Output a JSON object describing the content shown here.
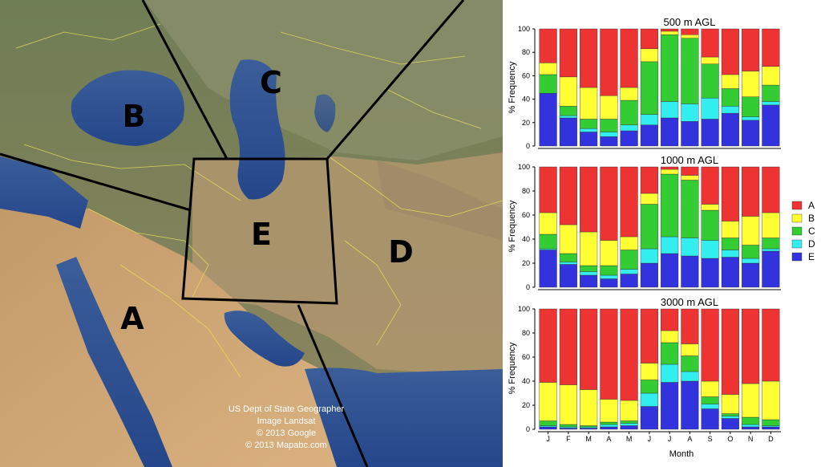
{
  "map": {
    "region_labels": [
      "A",
      "B",
      "C",
      "D",
      "E"
    ],
    "credits": [
      "US Dept of State Geographer",
      "Image Landsat",
      "© 2013 Google",
      "© 2013 Mapabc.com"
    ]
  },
  "chart_data": [
    {
      "type": "bar",
      "stacked": true,
      "title": "500 m AGL",
      "xlabel": "",
      "ylabel": "% Frequency",
      "ylim": [
        0,
        100
      ],
      "yticks": [
        0,
        20,
        40,
        60,
        80,
        100
      ],
      "categories": [
        "J",
        "F",
        "M",
        "A",
        "M",
        "J",
        "J",
        "A",
        "S",
        "O",
        "N",
        "D"
      ],
      "series": [
        {
          "name": "E",
          "color": "#3333dd",
          "values": [
            45,
            24,
            12,
            8,
            13,
            18,
            24,
            21,
            23,
            28,
            22,
            35
          ]
        },
        {
          "name": "D",
          "color": "#33eeee",
          "values": [
            0,
            2,
            3,
            4,
            5,
            9,
            14,
            15,
            18,
            6,
            3,
            3
          ]
        },
        {
          "name": "C",
          "color": "#33cc33",
          "values": [
            16,
            8,
            8,
            11,
            21,
            45,
            57,
            56,
            29,
            15,
            17,
            14
          ]
        },
        {
          "name": "B",
          "color": "#ffff33",
          "values": [
            10,
            25,
            27,
            20,
            11,
            11,
            3,
            3,
            6,
            12,
            22,
            16
          ]
        },
        {
          "name": "A",
          "color": "#ee3333",
          "values": [
            29,
            41,
            50,
            57,
            50,
            17,
            2,
            5,
            24,
            39,
            36,
            32
          ]
        }
      ]
    },
    {
      "type": "bar",
      "stacked": true,
      "title": "1000 m AGL",
      "xlabel": "",
      "ylabel": "% Frequency",
      "ylim": [
        0,
        100
      ],
      "yticks": [
        0,
        20,
        40,
        60,
        80,
        100
      ],
      "categories": [
        "J",
        "F",
        "M",
        "A",
        "M",
        "J",
        "J",
        "A",
        "S",
        "O",
        "N",
        "D"
      ],
      "series": [
        {
          "name": "E",
          "color": "#3333dd",
          "values": [
            31,
            19,
            10,
            7,
            11,
            20,
            28,
            26,
            24,
            25,
            20,
            30
          ]
        },
        {
          "name": "D",
          "color": "#33eeee",
          "values": [
            1,
            2,
            3,
            3,
            4,
            12,
            14,
            15,
            15,
            6,
            4,
            2
          ]
        },
        {
          "name": "C",
          "color": "#33cc33",
          "values": [
            12,
            7,
            5,
            8,
            16,
            37,
            52,
            48,
            25,
            10,
            11,
            9
          ]
        },
        {
          "name": "B",
          "color": "#ffff33",
          "values": [
            18,
            24,
            28,
            21,
            11,
            9,
            4,
            4,
            5,
            14,
            24,
            21
          ]
        },
        {
          "name": "A",
          "color": "#ee3333",
          "values": [
            38,
            48,
            54,
            61,
            58,
            22,
            2,
            7,
            31,
            45,
            41,
            38
          ]
        }
      ]
    },
    {
      "type": "bar",
      "stacked": true,
      "title": "3000 m AGL",
      "xlabel": "Month",
      "ylabel": "% Frequency",
      "ylim": [
        0,
        100
      ],
      "yticks": [
        0,
        20,
        40,
        60,
        80,
        100
      ],
      "categories": [
        "J",
        "F",
        "M",
        "A",
        "M",
        "J",
        "J",
        "A",
        "S",
        "O",
        "N",
        "D"
      ],
      "series": [
        {
          "name": "E",
          "color": "#3333dd",
          "values": [
            2,
            1,
            1,
            2,
            3,
            19,
            39,
            40,
            17,
            9,
            2,
            2
          ]
        },
        {
          "name": "D",
          "color": "#33eeee",
          "values": [
            1,
            1,
            1,
            2,
            2,
            11,
            15,
            8,
            4,
            2,
            2,
            1
          ]
        },
        {
          "name": "C",
          "color": "#33cc33",
          "values": [
            4,
            2,
            1,
            2,
            2,
            11,
            18,
            13,
            6,
            2,
            6,
            5
          ]
        },
        {
          "name": "B",
          "color": "#ffff33",
          "values": [
            32,
            33,
            30,
            19,
            17,
            14,
            10,
            10,
            13,
            16,
            28,
            32
          ]
        },
        {
          "name": "A",
          "color": "#ee3333",
          "values": [
            61,
            63,
            67,
            75,
            76,
            45,
            18,
            29,
            60,
            71,
            62,
            60
          ]
        }
      ]
    }
  ],
  "legend": {
    "placement": "right",
    "items": [
      {
        "label": "A",
        "color": "#ee3333"
      },
      {
        "label": "B",
        "color": "#ffff33"
      },
      {
        "label": "C",
        "color": "#33cc33"
      },
      {
        "label": "D",
        "color": "#33eeee"
      },
      {
        "label": "E",
        "color": "#3333dd"
      }
    ]
  }
}
